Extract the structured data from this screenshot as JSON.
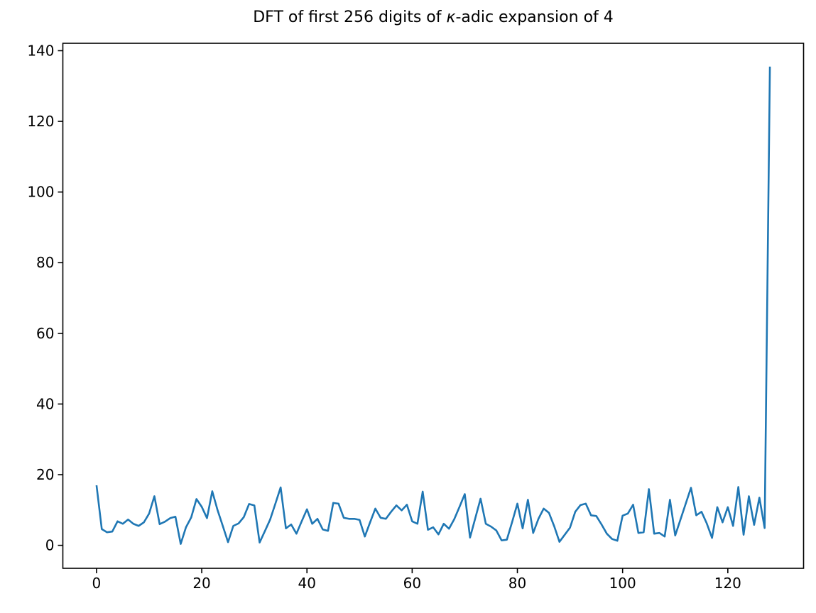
{
  "figure": {
    "title_prefix": "DFT of first 256 digits of ",
    "title_kappa": "κ",
    "title_suffix": "-adic expansion of 4",
    "background_color": "#ffffff",
    "axes_color": "#000000"
  },
  "chart_data": {
    "type": "line",
    "title": "DFT of first 256 digits of κ-adic expansion of 4",
    "xlabel": "",
    "ylabel": "",
    "grid": false,
    "legend": null,
    "line_color": "#1f77b4",
    "x_start": 0,
    "x_step": 1,
    "xlim": [
      -6.4,
      134.4
    ],
    "ylim": [
      -6.5,
      142.1
    ],
    "x_ticks": [
      0,
      20,
      40,
      60,
      80,
      100,
      120
    ],
    "y_ticks": [
      0,
      20,
      40,
      60,
      80,
      100,
      120,
      140
    ],
    "values": [
      17.0,
      4.6,
      3.7,
      3.9,
      6.8,
      6.1,
      7.3,
      6.1,
      5.5,
      6.5,
      9.0,
      13.9,
      6.0,
      6.7,
      7.7,
      8.1,
      0.4,
      5.1,
      7.9,
      13.1,
      10.9,
      7.7,
      15.3,
      10.0,
      5.5,
      0.9,
      5.5,
      6.2,
      8.0,
      11.7,
      11.3,
      0.8,
      4.0,
      7.3,
      11.8,
      16.4,
      4.8,
      5.9,
      3.3,
      6.8,
      10.2,
      6.1,
      7.5,
      4.5,
      4.1,
      12.0,
      11.8,
      7.8,
      7.5,
      7.5,
      7.2,
      2.5,
      6.5,
      10.4,
      7.8,
      7.5,
      9.5,
      11.3,
      9.9,
      11.5,
      6.8,
      6.1,
      15.2,
      4.4,
      5.1,
      3.1,
      6.1,
      4.7,
      7.4,
      10.9,
      14.5,
      2.2,
      7.7,
      13.2,
      6.1,
      5.3,
      4.2,
      1.4,
      1.6,
      6.6,
      11.8,
      4.8,
      12.9,
      3.5,
      7.5,
      10.4,
      9.2,
      5.4,
      1.0,
      3.0,
      5.0,
      9.5,
      11.4,
      11.8,
      8.5,
      8.3,
      5.9,
      3.3,
      1.8,
      1.3,
      8.4,
      9.0,
      11.5,
      3.5,
      3.7,
      15.9,
      3.3,
      3.5,
      2.5,
      12.9,
      2.8,
      7.3,
      11.8,
      16.3,
      8.5,
      9.5,
      6.2,
      2.1,
      10.8,
      6.5,
      10.8,
      5.5,
      16.5,
      3.0,
      13.9,
      5.8,
      13.5,
      4.9,
      135.5
    ]
  }
}
